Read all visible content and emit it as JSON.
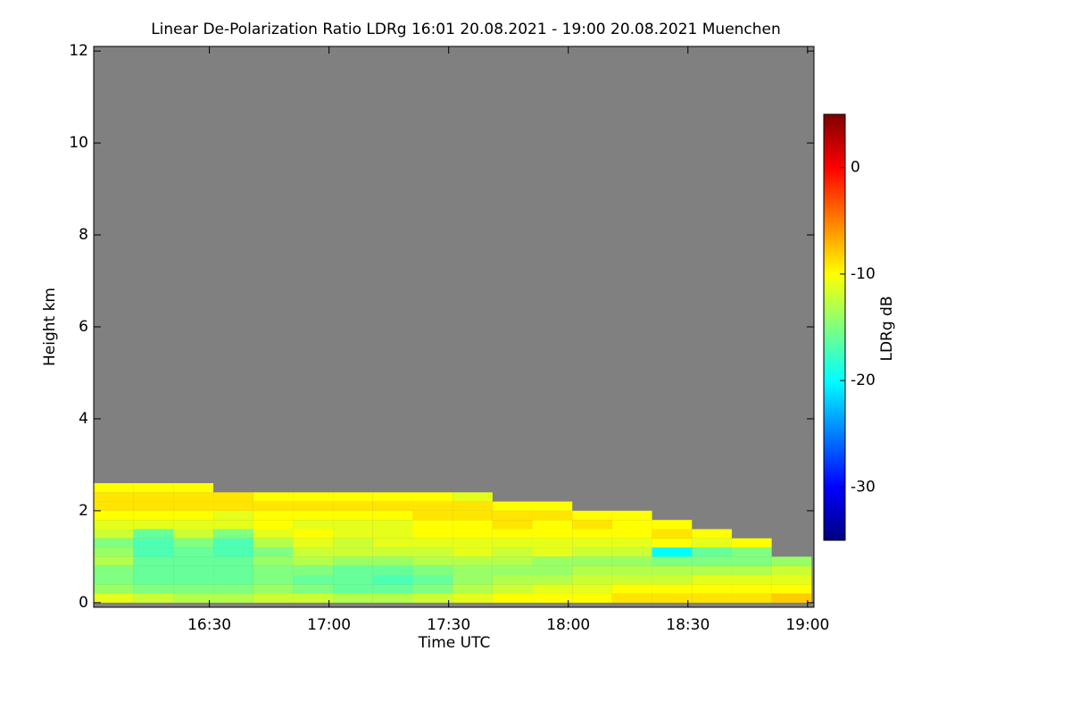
{
  "chart_data": {
    "type": "heatmap",
    "title": "Linear De-Polarization Ratio LDRg   16:01 20.08.2021 - 19:00 20.08.2021 Muenchen",
    "x_label": "Time UTC",
    "y_label": "Height km",
    "colorbar_label": "LDRg dB",
    "x": [
      966,
      976,
      986,
      996,
      1006,
      1016,
      1026,
      1036,
      1046,
      1056,
      1066,
      1076,
      1086,
      1096,
      1106,
      1116,
      1126,
      1136
    ],
    "y": [
      0.1,
      0.3,
      0.5,
      0.7,
      0.9,
      1.1,
      1.3,
      1.5,
      1.7,
      1.9,
      2.1,
      2.3,
      2.5
    ],
    "z": [
      [
        -11,
        -12,
        -13,
        -13,
        -12,
        -12,
        -13,
        -13,
        -12,
        -11,
        -10,
        -10,
        -10,
        -9,
        -9,
        -9,
        -9,
        -8
      ],
      [
        -14,
        -15,
        -15,
        -15,
        -14,
        -15,
        -16,
        -16,
        -15,
        -13,
        -12,
        -11,
        -11,
        -10,
        -10,
        -10,
        -10,
        -10
      ],
      [
        -15,
        -16,
        -16,
        -16,
        -15,
        -16,
        -16,
        -17,
        -16,
        -14,
        -13,
        -13,
        -12,
        -12,
        -12,
        -11,
        -11,
        -11
      ],
      [
        -15,
        -16,
        -16,
        -16,
        -15,
        -15,
        -16,
        -16,
        -15,
        -14,
        -14,
        -14,
        -13,
        -13,
        -13,
        -13,
        -13,
        -12
      ],
      [
        -13,
        -16,
        -16,
        -16,
        -14,
        -13,
        -14,
        -14,
        -13,
        -13,
        -13,
        -14,
        -14,
        -14,
        -15,
        -15,
        -15,
        -14
      ],
      [
        -14,
        -17,
        -16,
        -17,
        -15,
        -12,
        -12,
        -12,
        -12,
        -11,
        -12,
        -11,
        -12,
        -12,
        -20,
        -16,
        -15,
        null
      ],
      [
        -15,
        -17,
        -15,
        -17,
        -13,
        -11,
        -12,
        -11,
        -11,
        -11,
        -11,
        -11,
        -11,
        -11,
        -10,
        -11,
        -10,
        null
      ],
      [
        -12,
        -16,
        -12,
        -15,
        -11,
        -10,
        -11,
        -11,
        -10,
        -10,
        -10,
        -10,
        -10,
        -10,
        -9,
        -10,
        null,
        null
      ],
      [
        -11,
        -11,
        -11,
        -11,
        -10,
        -11,
        -11,
        -11,
        -10,
        -10,
        -9,
        -10,
        -9,
        -10,
        -10,
        null,
        null,
        null
      ],
      [
        -10,
        -10,
        -10,
        -11,
        -10,
        -10,
        -10,
        -10,
        -9,
        -9,
        -9,
        -9,
        -10,
        -10,
        null,
        null,
        null,
        null
      ],
      [
        -9,
        -9,
        -9,
        -9,
        -9,
        -9,
        -9,
        -9,
        -9,
        -9,
        -10,
        -10,
        null,
        null,
        null,
        null,
        null,
        null
      ],
      [
        -9,
        -9,
        -9,
        -9,
        -10,
        -10,
        -10,
        -10,
        -10,
        -11,
        null,
        null,
        null,
        null,
        null,
        null,
        null,
        null
      ],
      [
        -10,
        -10,
        -10,
        null,
        null,
        null,
        null,
        null,
        null,
        null,
        null,
        null,
        null,
        null,
        null,
        null,
        null,
        null
      ]
    ],
    "xlim": [
      961,
      1141.6
    ],
    "xticks": [
      {
        "value": 990,
        "label": "16:30"
      },
      {
        "value": 1020,
        "label": "17:00"
      },
      {
        "value": 1050,
        "label": "17:30"
      },
      {
        "value": 1080,
        "label": "18:00"
      },
      {
        "value": 1110,
        "label": "18:30"
      },
      {
        "value": 1140,
        "label": "19:00"
      }
    ],
    "ylim": [
      -0.1,
      12.1
    ],
    "yticks": [
      0,
      2,
      4,
      6,
      8,
      10,
      12
    ],
    "zlim": [
      -35,
      5
    ],
    "zticks": [
      0,
      -10,
      -20,
      -30
    ],
    "colormap": "jet",
    "missing_color": "#808080"
  }
}
